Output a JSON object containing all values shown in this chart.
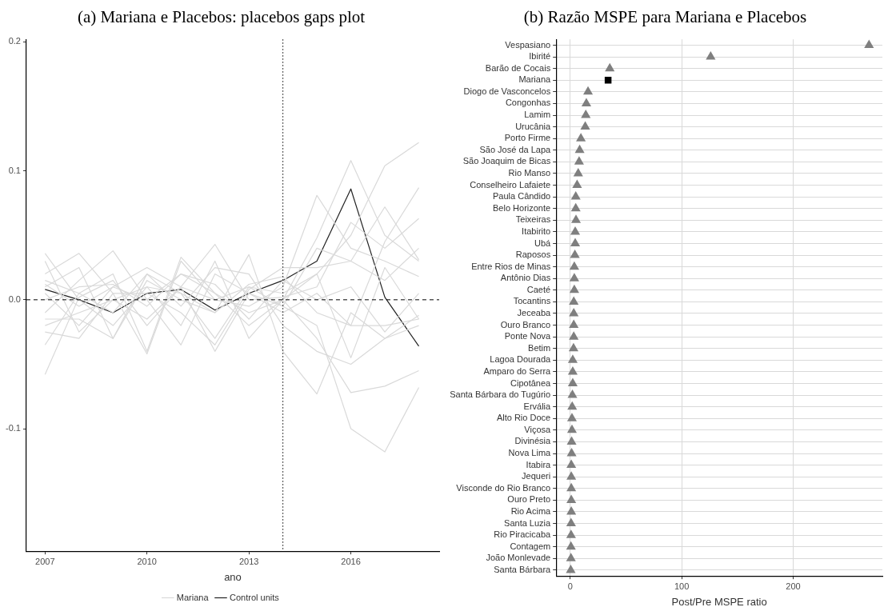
{
  "chart_data": [
    {
      "type": "line",
      "title": "(a) Mariana e Placebos: placebos gaps plot",
      "xlabel": "ano",
      "x": [
        2007,
        2008,
        2009,
        2010,
        2011,
        2012,
        2013,
        2014,
        2015,
        2016,
        2017,
        2018
      ],
      "xlim": [
        2006.45,
        2018.6
      ],
      "xticks": [
        2007,
        2010,
        2013,
        2016
      ],
      "ylim": [
        -0.195,
        0.202
      ],
      "yticks": [
        -0.1,
        {
          "value": 0,
          "label": "0.0"
        },
        0.1,
        0.2
      ],
      "grid": false,
      "legend": "bottom",
      "marker": "none",
      "line_style": "solid",
      "ref_lines": [
        {
          "axis": "y",
          "value": 0,
          "line_style": "dashed",
          "color": "#000000"
        },
        {
          "axis": "x",
          "value": 2014,
          "line_style": "dotted",
          "color": "#000000"
        }
      ],
      "series": [
        {
          "name": "Mariana",
          "color": "#d9d9d9",
          "values": [
            0.012,
            -0.005,
            0.01,
            0.0,
            0.02,
            0.005,
            -0.01,
            0.0,
            0.048,
            0.108,
            0.05,
            0.03
          ]
        },
        {
          "color": "#d9d9d9",
          "values": [
            0.036,
            0.0,
            -0.02,
            0.01,
            0.005,
            -0.03,
            0.01,
            0.005,
            0.02,
            0.05,
            0.104,
            0.122
          ]
        },
        {
          "color": "#d9d9d9",
          "values": [
            -0.058,
            0.002,
            0.015,
            -0.02,
            0.01,
            0.0,
            -0.005,
            0.01,
            0.081,
            0.04,
            0.03,
            0.018
          ]
        },
        {
          "color": "#d9d9d9",
          "values": [
            0.02,
            0.036,
            0.005,
            -0.042,
            0.03,
            0.0,
            0.01,
            -0.005,
            0.04,
            0.03,
            0.072,
            0.031
          ]
        },
        {
          "color": "#d9d9d9",
          "values": [
            -0.01,
            0.015,
            0.038,
            0.0,
            -0.035,
            0.02,
            0.005,
            -0.01,
            0.005,
            -0.02,
            0.045,
            0.087
          ]
        },
        {
          "color": "#d9d9d9",
          "values": [
            0.005,
            -0.02,
            0.01,
            0.025,
            0.01,
            0.043,
            0.0,
            0.002,
            0.01,
            0.06,
            0.04,
            0.063
          ]
        },
        {
          "color": "#d9d9d9",
          "values": [
            -0.02,
            -0.01,
            0.0,
            -0.015,
            0.01,
            -0.04,
            0.005,
            -0.005,
            -0.02,
            -0.1,
            -0.118,
            -0.068
          ]
        },
        {
          "color": "#d9d9d9",
          "values": [
            0.01,
            0.025,
            -0.03,
            0.015,
            0.0,
            -0.01,
            0.035,
            -0.04,
            -0.073,
            -0.01,
            -0.03,
            -0.02
          ]
        },
        {
          "color": "#d9d9d9",
          "values": [
            -0.035,
            0.005,
            0.02,
            -0.04,
            0.033,
            0.005,
            -0.02,
            0.0,
            -0.03,
            -0.072,
            -0.067,
            -0.055
          ]
        },
        {
          "color": "#d9d9d9",
          "values": [
            0.03,
            -0.025,
            0.0,
            0.01,
            -0.02,
            0.03,
            -0.03,
            0.0,
            0.02,
            -0.045,
            0.025,
            -0.015
          ]
        },
        {
          "color": "#d9d9d9",
          "values": [
            -0.015,
            -0.015,
            -0.03,
            0.02,
            0.005,
            -0.01,
            0.012,
            0.018,
            -0.01,
            -0.02,
            -0.02,
            -0.015
          ]
        },
        {
          "color": "#d9d9d9",
          "values": [
            0.0,
            0.01,
            0.012,
            -0.005,
            0.02,
            0.012,
            -0.015,
            0.015,
            0.0,
            0.01,
            -0.025,
            0.005
          ]
        },
        {
          "color": "#d9d9d9",
          "values": [
            -0.025,
            -0.03,
            0.005,
            0.005,
            -0.01,
            -0.035,
            0.008,
            0.025,
            0.025,
            0.03,
            0.015,
            0.04
          ]
        },
        {
          "color": "#d9d9d9",
          "values": [
            0.015,
            0.005,
            -0.01,
            0.02,
            -0.005,
            0.025,
            0.02,
            -0.02,
            -0.04,
            -0.05,
            -0.03,
            -0.012
          ]
        },
        {
          "name": "Control units",
          "color": "#222222",
          "values": [
            0.008,
            0.0,
            -0.01,
            0.005,
            0.008,
            -0.008,
            0.005,
            0.015,
            0.03,
            0.086,
            0.002,
            -0.036
          ]
        }
      ]
    },
    {
      "type": "scatter",
      "title": "(b) Razão MSPE para Mariana e Placebos",
      "xlabel": "Post/Pre MSPE ratio",
      "orientation": "horizontal",
      "grid": true,
      "legend": false,
      "xlim": [
        -12.6,
        280
      ],
      "xticks": [
        0,
        100,
        200
      ],
      "categories": [
        "Vespasiano",
        "Ibirité",
        "Barão de Cocais",
        "Mariana",
        "Diogo de Vasconcelos",
        "Congonhas",
        "Lamim",
        "Urucânia",
        "Porto Firme",
        "São José da Lapa",
        "São Joaquim de Bicas",
        "Rio Manso",
        "Conselheiro Lafaiete",
        "Paula Cândido",
        "Belo Horizonte",
        "Teixeiras",
        "Itabirito",
        "Ubá",
        "Raposos",
        "Entre Rios de Minas",
        "Antônio Dias",
        "Caeté",
        "Tocantins",
        "Jeceaba",
        "Ouro Branco",
        "Ponte Nova",
        "Betim",
        "Lagoa Dourada",
        "Amparo do Serra",
        "Cipotânea",
        "Santa Bárbara do Tugúrio",
        "Ervália",
        "Alto Rio Doce",
        "Viçosa",
        "Divinésia",
        "Nova Lima",
        "Itabira",
        "Jequeri",
        "Visconde do Rio Branco",
        "Ouro Preto",
        "Rio Acima",
        "Santa Luzia",
        "Rio Piracicaba",
        "Contagem",
        "João Monlevade",
        "Santa Bárbara"
      ],
      "series": [
        {
          "color": "#7f7f7f",
          "marker": "triangle",
          "values": [
            268,
            126,
            35.5,
            null,
            16,
            14.5,
            14,
            13.5,
            9.6,
            8.5,
            8,
            7.2,
            6.2,
            5,
            5,
            5.2,
            4.5,
            4.5,
            4.2,
            3.7,
            3.7,
            3.7,
            3.2,
            3.2,
            3.2,
            3.2,
            3,
            2.3,
            2.3,
            2.3,
            2,
            1.8,
            1.6,
            1.6,
            1.3,
            1.3,
            1,
            1,
            1,
            1,
            1,
            0.8,
            0.8,
            0.7,
            0.7,
            0.5
          ]
        },
        {
          "color": "#000000",
          "marker": "square",
          "values": [
            null,
            null,
            null,
            34,
            null,
            null,
            null,
            null,
            null,
            null,
            null,
            null,
            null,
            null,
            null,
            null,
            null,
            null,
            null,
            null,
            null,
            null,
            null,
            null,
            null,
            null,
            null,
            null,
            null,
            null,
            null,
            null,
            null,
            null,
            null,
            null,
            null,
            null,
            null,
            null,
            null,
            null,
            null,
            null,
            null,
            null
          ]
        }
      ]
    }
  ]
}
